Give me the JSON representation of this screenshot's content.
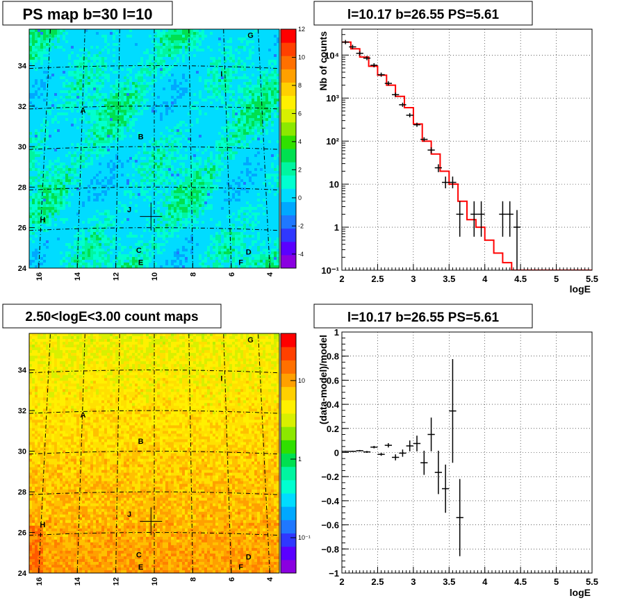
{
  "panels": {
    "ps_map": {
      "title": "PS map b=30 l=10",
      "y_ticks": [
        "24",
        "26",
        "28",
        "30",
        "32",
        "34"
      ],
      "x_ticks": [
        "16",
        "14",
        "12",
        "10",
        "8",
        "6",
        "4"
      ],
      "colorbar_ticks": [
        "-4",
        "-2",
        "0",
        "2",
        "4",
        "6",
        "8",
        "10",
        "12"
      ],
      "labels": [
        "A",
        "B",
        "C",
        "D",
        "E",
        "F",
        "G",
        "H",
        "I",
        "J"
      ],
      "palette": [
        "#8a00e0",
        "#5a00ff",
        "#2f38ff",
        "#1f78ff",
        "#00a8ff",
        "#00dcff",
        "#00ffd0",
        "#00f5a0",
        "#00e050",
        "#30e000",
        "#8ce800",
        "#d8f000",
        "#fff000",
        "#ffd000",
        "#ffa000",
        "#ff7000",
        "#ff4000",
        "#ff0000"
      ]
    },
    "count_map": {
      "title": "2.50<logE<3.00 count maps",
      "y_ticks": [
        "24",
        "26",
        "28",
        "30",
        "32",
        "34"
      ],
      "x_ticks": [
        "16",
        "14",
        "12",
        "10",
        "8",
        "6",
        "4"
      ],
      "colorbar_ticks": [
        "10",
        "1",
        "10⁻¹"
      ],
      "labels": [
        "A",
        "B",
        "C",
        "D",
        "E",
        "F",
        "G",
        "H",
        "I",
        "J"
      ]
    },
    "spectrum": {
      "title": "l=10.17 b=26.55 PS=5.61",
      "xlabel": "logE",
      "ylabel": "Nb of counts",
      "x_ticks": [
        "2",
        "2.5",
        "3",
        "3.5",
        "4",
        "4.5",
        "5",
        "5.5"
      ],
      "y_ticks": [
        "10⁻¹",
        "1",
        "10",
        "10²",
        "10³",
        "10⁴"
      ]
    },
    "residual": {
      "title": "l=10.17 b=26.55 PS=5.61",
      "xlabel": "logE",
      "ylabel": "(data-model)/model",
      "x_ticks": [
        "2",
        "2.5",
        "3",
        "3.5",
        "4",
        "4.5",
        "5",
        "5.5"
      ],
      "y_ticks": [
        "1",
        "0.8",
        "0.6",
        "0.4",
        "0.2",
        "0",
        "−0.2",
        "−0.4",
        "−0.6",
        "−0.8",
        "−1"
      ]
    }
  },
  "chart_data": [
    {
      "type": "heatmap",
      "title": "PS map b=30 l=10",
      "xlabel": "",
      "ylabel": "",
      "xlim": [
        16.5,
        3.5
      ],
      "ylim": [
        24,
        35.8
      ],
      "zlim": [
        -5,
        12
      ],
      "grid": true,
      "marked_position": {
        "x": 10.17,
        "y": 26.55
      },
      "sources": [
        {
          "name": "A",
          "x": 13.7,
          "y": 31.8
        },
        {
          "name": "B",
          "x": 10.7,
          "y": 30.5
        },
        {
          "name": "C",
          "x": 10.8,
          "y": 24.9
        },
        {
          "name": "D",
          "x": 5.1,
          "y": 24.8
        },
        {
          "name": "E",
          "x": 10.7,
          "y": 24.3
        },
        {
          "name": "F",
          "x": 5.5,
          "y": 24.3
        },
        {
          "name": "G",
          "x": 5.0,
          "y": 35.5
        },
        {
          "name": "H",
          "x": 15.8,
          "y": 26.4
        },
        {
          "name": "I",
          "x": 6.5,
          "y": 33.6
        },
        {
          "name": "J",
          "x": 11.3,
          "y": 26.9
        }
      ]
    },
    {
      "type": "heatmap",
      "title": "2.50<logE<3.00 count maps",
      "xlabel": "",
      "ylabel": "",
      "xlim": [
        16.5,
        3.5
      ],
      "ylim": [
        24,
        35.8
      ],
      "zscale": "log",
      "grid": true,
      "marked_position": {
        "x": 10.17,
        "y": 26.55
      },
      "sources": [
        {
          "name": "A",
          "x": 13.7,
          "y": 31.8
        },
        {
          "name": "B",
          "x": 10.7,
          "y": 30.5
        },
        {
          "name": "C",
          "x": 10.8,
          "y": 24.9
        },
        {
          "name": "D",
          "x": 5.1,
          "y": 24.8
        },
        {
          "name": "E",
          "x": 10.7,
          "y": 24.3
        },
        {
          "name": "F",
          "x": 5.5,
          "y": 24.3
        },
        {
          "name": "G",
          "x": 5.0,
          "y": 35.5
        },
        {
          "name": "H",
          "x": 15.8,
          "y": 26.4
        },
        {
          "name": "I",
          "x": 6.5,
          "y": 33.6
        },
        {
          "name": "J",
          "x": 11.3,
          "y": 26.9
        }
      ]
    },
    {
      "type": "line",
      "title": "l=10.17 b=26.55 PS=5.61",
      "xlabel": "logE",
      "ylabel": "Nb of counts",
      "xlim": [
        2,
        5.5
      ],
      "ylim": [
        0.1,
        40000
      ],
      "yscale": "log",
      "grid": true,
      "series": [
        {
          "kind": "histogram",
          "color": "#ff0000",
          "bin_width": 0.125,
          "x": [
            2.0,
            2.125,
            2.25,
            2.375,
            2.5,
            2.625,
            2.75,
            2.875,
            3.0,
            3.125,
            3.25,
            3.375,
            3.5,
            3.625,
            3.75,
            3.875,
            4.0,
            4.125,
            4.25,
            4.375,
            4.5,
            4.625,
            4.75,
            4.875,
            5.0,
            5.125,
            5.25,
            5.375
          ],
          "values": [
            20000,
            14000,
            9000,
            5500,
            3400,
            2000,
            1100,
            600,
            250,
            100,
            50,
            20,
            10,
            4,
            1.5,
            1,
            0.5,
            0.25,
            0.15,
            0.1,
            0.1,
            0.1,
            0.1,
            0.1,
            0.1,
            0.1,
            0.1,
            0.1
          ]
        },
        {
          "kind": "points",
          "color": "#000000",
          "points": [
            {
              "x": 2.05,
              "y": 20000,
              "xerr": 0.05
            },
            {
              "x": 2.15,
              "y": 15500,
              "xerr": 0.05
            },
            {
              "x": 2.25,
              "y": 11000,
              "xerr": 0.05
            },
            {
              "x": 2.35,
              "y": 8500,
              "xerr": 0.05
            },
            {
              "x": 2.45,
              "y": 5800,
              "xerr": 0.05
            },
            {
              "x": 2.55,
              "y": 3500,
              "xerr": 0.05
            },
            {
              "x": 2.65,
              "y": 2200,
              "xerr": 0.05
            },
            {
              "x": 2.75,
              "y": 1200,
              "xerr": 0.05
            },
            {
              "x": 2.85,
              "y": 700,
              "xerr": 0.05
            },
            {
              "x": 2.95,
              "y": 400,
              "xerr": 0.05
            },
            {
              "x": 3.05,
              "y": 240,
              "xerr": 0.05
            },
            {
              "x": 3.15,
              "y": 110,
              "xerr": 0.05
            },
            {
              "x": 3.25,
              "y": 62,
              "xerr": 0.05,
              "ylo": 52,
              "yhi": 72
            },
            {
              "x": 3.35,
              "y": 24,
              "xerr": 0.05,
              "ylo": 19,
              "yhi": 29
            },
            {
              "x": 3.45,
              "y": 11,
              "xerr": 0.05,
              "ylo": 8,
              "yhi": 15
            },
            {
              "x": 3.55,
              "y": 11,
              "xerr": 0.05,
              "ylo": 8,
              "yhi": 15
            },
            {
              "x": 3.65,
              "y": 2,
              "xerr": 0.05,
              "ylo": 0.6,
              "yhi": 4
            },
            {
              "x": 3.85,
              "y": 2,
              "xerr": 0.05,
              "ylo": 0.6,
              "yhi": 4
            },
            {
              "x": 3.95,
              "y": 2,
              "xerr": 0.05,
              "ylo": 0.6,
              "yhi": 4
            },
            {
              "x": 4.25,
              "y": 2,
              "xerr": 0.05,
              "ylo": 0.6,
              "yhi": 4
            },
            {
              "x": 4.35,
              "y": 2,
              "xerr": 0.05,
              "ylo": 0.6,
              "yhi": 4
            },
            {
              "x": 4.45,
              "y": 1,
              "xerr": 0.05,
              "ylo": 0.1,
              "yhi": 2.5
            }
          ]
        }
      ]
    },
    {
      "type": "scatter",
      "title": "l=10.17 b=26.55 PS=5.61",
      "xlabel": "logE",
      "ylabel": "(data-model)/model",
      "xlim": [
        2,
        5.5
      ],
      "ylim": [
        -1,
        1
      ],
      "grid": true,
      "points": [
        {
          "x": 2.05,
          "y": 0.01,
          "yerr": 0.005
        },
        {
          "x": 2.15,
          "y": 0.01,
          "yerr": 0.005
        },
        {
          "x": 2.25,
          "y": 0.015,
          "yerr": 0.006
        },
        {
          "x": 2.35,
          "y": 0.005,
          "yerr": 0.008
        },
        {
          "x": 2.45,
          "y": 0.045,
          "yerr": 0.01
        },
        {
          "x": 2.55,
          "y": -0.015,
          "yerr": 0.012
        },
        {
          "x": 2.65,
          "y": 0.06,
          "yerr": 0.018
        },
        {
          "x": 2.75,
          "y": -0.04,
          "yerr": 0.025
        },
        {
          "x": 2.85,
          "y": -0.005,
          "yerr": 0.03
        },
        {
          "x": 2.95,
          "y": 0.055,
          "yerr": 0.045
        },
        {
          "x": 3.05,
          "y": 0.075,
          "yerr": 0.065
        },
        {
          "x": 3.15,
          "y": -0.085,
          "yerr": 0.1
        },
        {
          "x": 3.25,
          "y": 0.15,
          "yerr": 0.14
        },
        {
          "x": 3.35,
          "y": -0.165,
          "yerr": 0.18
        },
        {
          "x": 3.45,
          "y": -0.3,
          "yerr": 0.2
        },
        {
          "x": 3.55,
          "y": 0.345,
          "yerr": 0.43
        },
        {
          "x": 3.65,
          "y": -0.54,
          "yerr": 0.32
        }
      ]
    }
  ]
}
